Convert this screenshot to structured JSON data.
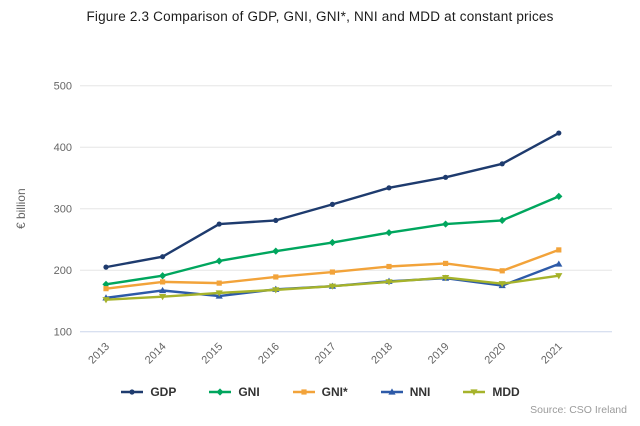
{
  "figure": {
    "title": "Figure 2.3 Comparison of GDP, GNI, GNI*, NNI and MDD at constant prices",
    "source": "Source: CSO Ireland"
  },
  "chart_data": {
    "type": "line",
    "title": "Figure 2.3 Comparison of GDP, GNI, GNI*, NNI and MDD at constant prices",
    "categories": [
      "2013",
      "2014",
      "2015",
      "2016",
      "2017",
      "2018",
      "2019",
      "2020",
      "2021"
    ],
    "series": [
      {
        "name": "GDP",
        "color": "#1e3b6e",
        "marker": "circle",
        "values": [
          205,
          222,
          275,
          281,
          307,
          334,
          351,
          373,
          423
        ]
      },
      {
        "name": "GNI",
        "color": "#00a65e",
        "marker": "diamond",
        "values": [
          177,
          191,
          215,
          231,
          245,
          261,
          275,
          281,
          320
        ]
      },
      {
        "name": "GNI*",
        "color": "#f2a33a",
        "marker": "square",
        "values": [
          170,
          181,
          179,
          189,
          197,
          206,
          211,
          199,
          233
        ]
      },
      {
        "name": "NNI",
        "color": "#2d5aa8",
        "marker": "triangle",
        "values": [
          155,
          167,
          158,
          169,
          174,
          182,
          187,
          175,
          210
        ]
      },
      {
        "name": "MDD",
        "color": "#a6b32b",
        "marker": "triangle-down",
        "values": [
          152,
          157,
          163,
          168,
          174,
          181,
          188,
          178,
          191
        ]
      }
    ],
    "xlabel": "",
    "ylabel": "€ billion",
    "ylim": [
      100,
      500
    ],
    "yticks": [
      100,
      200,
      300,
      400,
      500
    ],
    "grid": true,
    "grid_color": "#e6e6e6",
    "axis_line_color": "#ccd6eb",
    "tick_color": "#666666",
    "legend_position": "bottom"
  }
}
